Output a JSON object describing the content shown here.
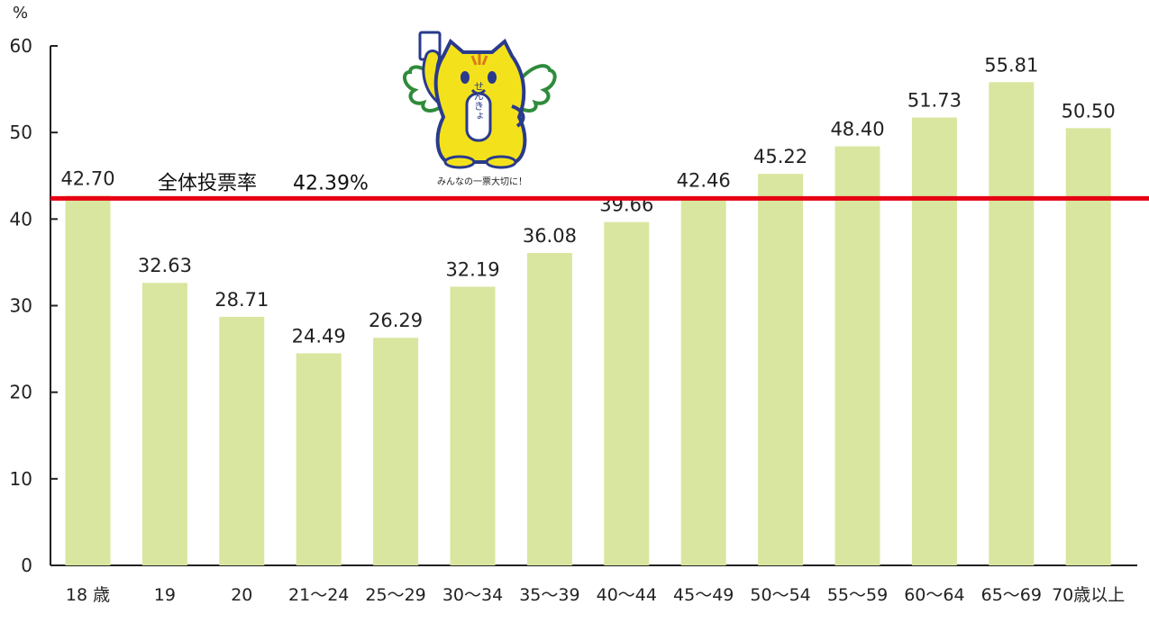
{
  "chart_data": {
    "type": "bar",
    "title": "",
    "xlabel": "",
    "ylabel": "%",
    "ylim": [
      0,
      60
    ],
    "yticks": [
      0,
      10,
      20,
      30,
      40,
      50,
      60
    ],
    "grid": false,
    "categories": [
      "18 歳",
      "19",
      "20",
      "21〜24",
      "25〜29",
      "30〜34",
      "35〜39",
      "40〜44",
      "45〜49",
      "50〜54",
      "55〜59",
      "60〜64",
      "65〜69",
      "70歳以上"
    ],
    "values": [
      42.7,
      32.63,
      28.71,
      24.49,
      26.29,
      32.19,
      36.08,
      39.66,
      42.46,
      45.22,
      48.4,
      51.73,
      55.81,
      50.5
    ],
    "value_labels": [
      "42.70",
      "32.63",
      "28.71",
      "24.49",
      "26.29",
      "32.19",
      "36.08",
      "39.66",
      "42.46",
      "45.22",
      "48.40",
      "51.73",
      "55.81",
      "50.50"
    ],
    "reference_line": {
      "label": "全体投票率",
      "value": 42.39,
      "value_text": "42.39%",
      "color": "#e60012"
    },
    "bar_color": "#d9e69f",
    "mascot": {
      "caption": "みんなの一票大切に！",
      "sash_text": "せんきょ"
    }
  }
}
